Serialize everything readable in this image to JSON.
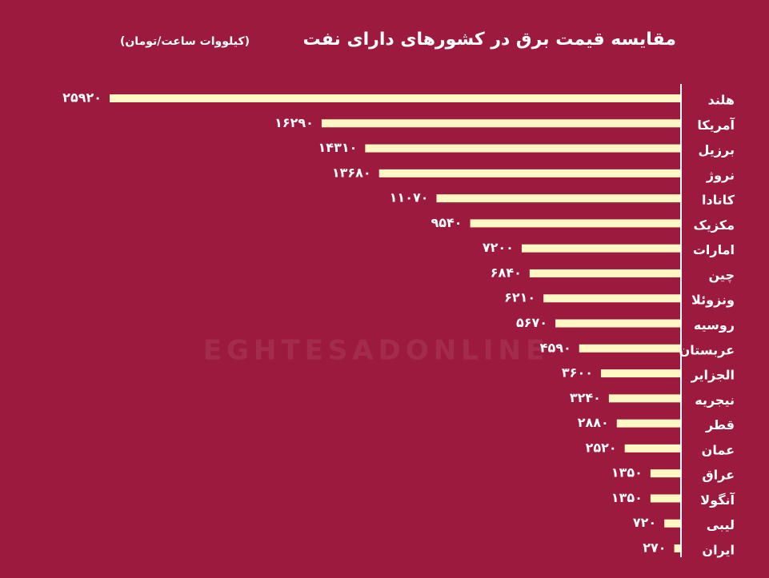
{
  "chart_data": {
    "type": "bar",
    "orientation": "horizontal",
    "title": "مقایسه قیمت برق در کشورهای دارای نفت",
    "subtitle": "(کیلووات ساعت/تومان)",
    "watermark": "EGHTESADONLINE",
    "color": "#fff7c4",
    "categories": [
      "هلند",
      "آمریکا",
      "برزیل",
      "نروژ",
      "کانادا",
      "مکزیک",
      "امارات",
      "چین",
      "ونزوئلا",
      "روسیه",
      "عربستان",
      "الجزایر",
      "نیجریه",
      "قطر",
      "عمان",
      "عراق",
      "آنگولا",
      "لیبی",
      "ایران"
    ],
    "values": [
      25920,
      16290,
      14310,
      13680,
      11070,
      9540,
      7200,
      6840,
      6210,
      5670,
      4590,
      3600,
      3240,
      2880,
      2520,
      1350,
      1350,
      720,
      270
    ],
    "value_labels": [
      "۲۵۹۲۰",
      "۱۶۲۹۰",
      "۱۴۳۱۰",
      "۱۳۶۸۰",
      "۱۱۰۷۰",
      "۹۵۴۰",
      "۷۲۰۰",
      "۶۸۴۰",
      "۶۲۱۰",
      "۵۶۷۰",
      "۴۵۹۰",
      "۳۶۰۰",
      "۳۲۴۰",
      "۲۸۸۰",
      "۲۵۲۰",
      "۱۳۵۰",
      "۱۳۵۰",
      "۷۲۰",
      "۲۷۰"
    ]
  }
}
